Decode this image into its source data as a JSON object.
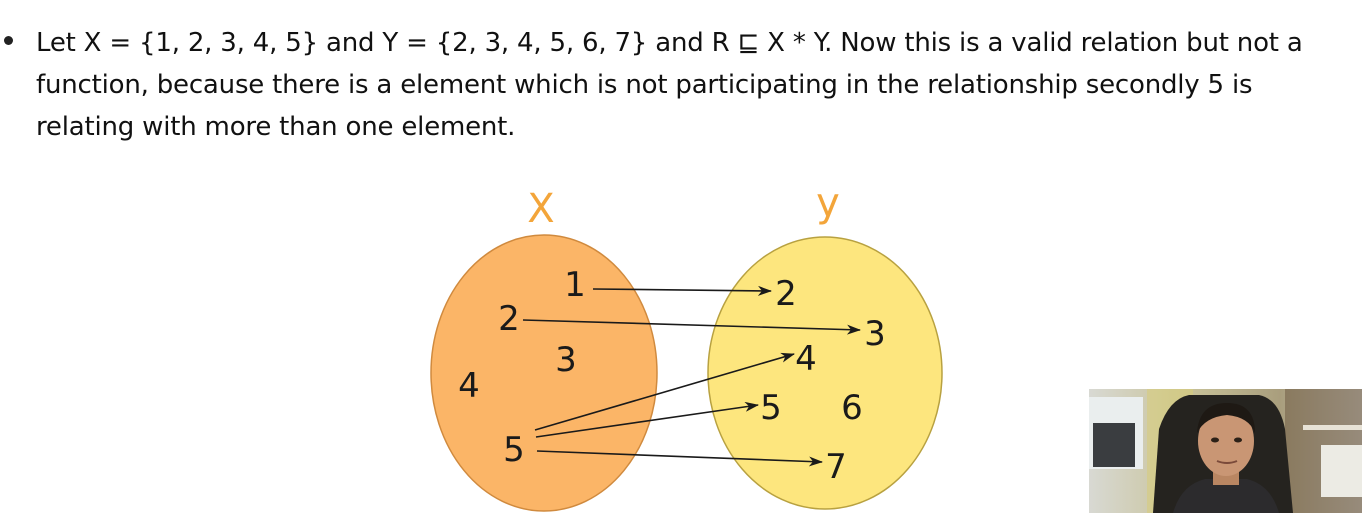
{
  "slide": {
    "bullet_text": "Let X = {1, 2, 3, 4, 5} and Y = {2, 3, 4, 5, 6, 7} and R ⊑ X * Y. Now this is a valid relation but not a function, because there is a element which is not participating in the relationship secondly 5 is relating with more than one element."
  },
  "diagram": {
    "set_x_label": "X",
    "set_y_label": "y",
    "set_x_color": "#fbb567",
    "set_y_color": "#fde36c",
    "set_x_elements": [
      "1",
      "2",
      "3",
      "4",
      "5"
    ],
    "set_y_elements": [
      "2",
      "3",
      "4",
      "5",
      "6",
      "7"
    ],
    "relations": [
      {
        "from": "1",
        "to": "2"
      },
      {
        "from": "2",
        "to": "3"
      },
      {
        "from": "5",
        "to": "4"
      },
      {
        "from": "5",
        "to": "5"
      },
      {
        "from": "5",
        "to": "7"
      }
    ]
  }
}
